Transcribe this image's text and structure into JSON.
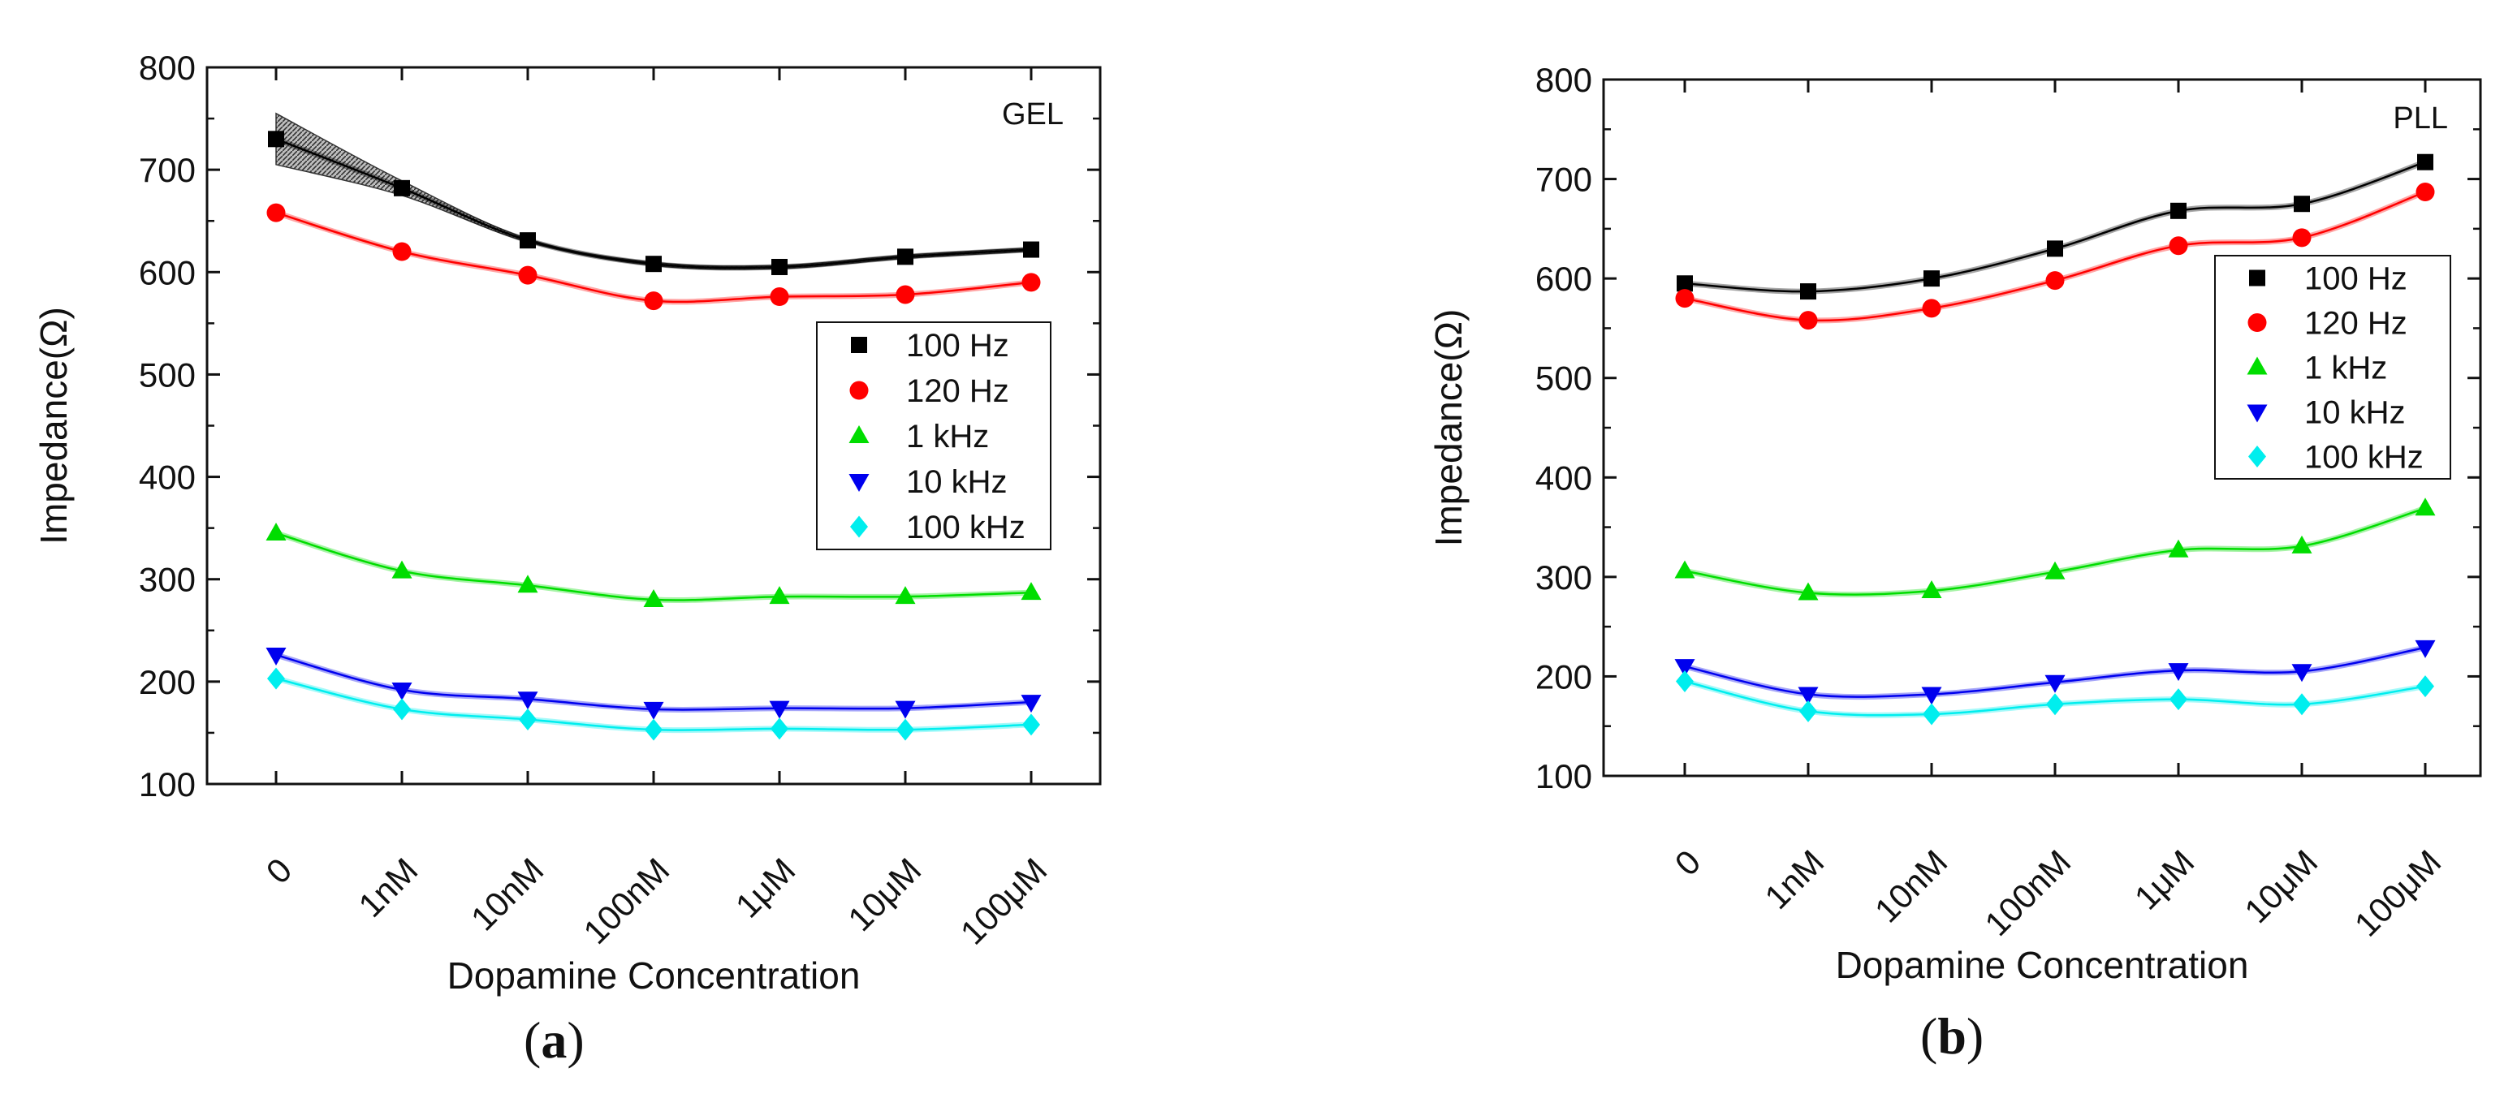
{
  "chart_data": [
    {
      "type": "line",
      "panel_label": "a",
      "annotation": "GEL",
      "xlabel": "Dopamine Concentration",
      "ylabel": "Impedance(Ω)",
      "ylim": [
        100,
        800
      ],
      "yticks": [
        "100",
        "200",
        "300",
        "400",
        "500",
        "600",
        "700",
        "800"
      ],
      "categories": [
        "0",
        "1nM",
        "10nM",
        "100nM",
        "1μM",
        "10μM",
        "100μM"
      ],
      "legend_position": "right-middle",
      "series": [
        {
          "name": "100 Hz",
          "marker": "square",
          "color": "#000000",
          "values": [
            730,
            682,
            631,
            608,
            605,
            615,
            622
          ],
          "band_start": [
            705,
            755
          ]
        },
        {
          "name": "120 Hz",
          "marker": "circle",
          "color": "#ff0000",
          "values": [
            658,
            620,
            597,
            572,
            576,
            578,
            590
          ]
        },
        {
          "name": "1 kHz",
          "marker": "triangle-up",
          "color": "#00dd00",
          "values": [
            345,
            308,
            294,
            280,
            283,
            283,
            287
          ]
        },
        {
          "name": "10 kHz",
          "marker": "triangle-down",
          "color": "#0000ee",
          "values": [
            226,
            192,
            183,
            173,
            174,
            174,
            180
          ]
        },
        {
          "name": "100 kHz",
          "marker": "diamond",
          "color": "#00eeee",
          "values": [
            203,
            173,
            163,
            153,
            154,
            153,
            158
          ]
        }
      ]
    },
    {
      "type": "line",
      "panel_label": "b",
      "annotation": "PLL",
      "xlabel": "Dopamine Concentration",
      "ylabel": "Impedance(Ω)",
      "ylim": [
        100,
        800
      ],
      "yticks": [
        "100",
        "200",
        "300",
        "400",
        "500",
        "600",
        "700",
        "800"
      ],
      "categories": [
        "0",
        "1nM",
        "10nM",
        "100nM",
        "1μM",
        "10μM",
        "100μM"
      ],
      "legend_position": "right-middle",
      "series": [
        {
          "name": "100 Hz",
          "marker": "square",
          "color": "#000000",
          "values": [
            595,
            587,
            600,
            630,
            668,
            675,
            717
          ]
        },
        {
          "name": "120 Hz",
          "marker": "circle",
          "color": "#ff0000",
          "values": [
            580,
            558,
            570,
            598,
            633,
            641,
            687
          ]
        },
        {
          "name": "1 kHz",
          "marker": "triangle-up",
          "color": "#00dd00",
          "values": [
            306,
            284,
            286,
            305,
            327,
            331,
            369
          ]
        },
        {
          "name": "10 kHz",
          "marker": "triangle-down",
          "color": "#0000ee",
          "values": [
            210,
            182,
            182,
            194,
            206,
            205,
            229
          ]
        },
        {
          "name": "100 kHz",
          "marker": "diamond",
          "color": "#00eeee",
          "values": [
            195,
            165,
            162,
            172,
            177,
            172,
            190
          ]
        }
      ]
    }
  ]
}
